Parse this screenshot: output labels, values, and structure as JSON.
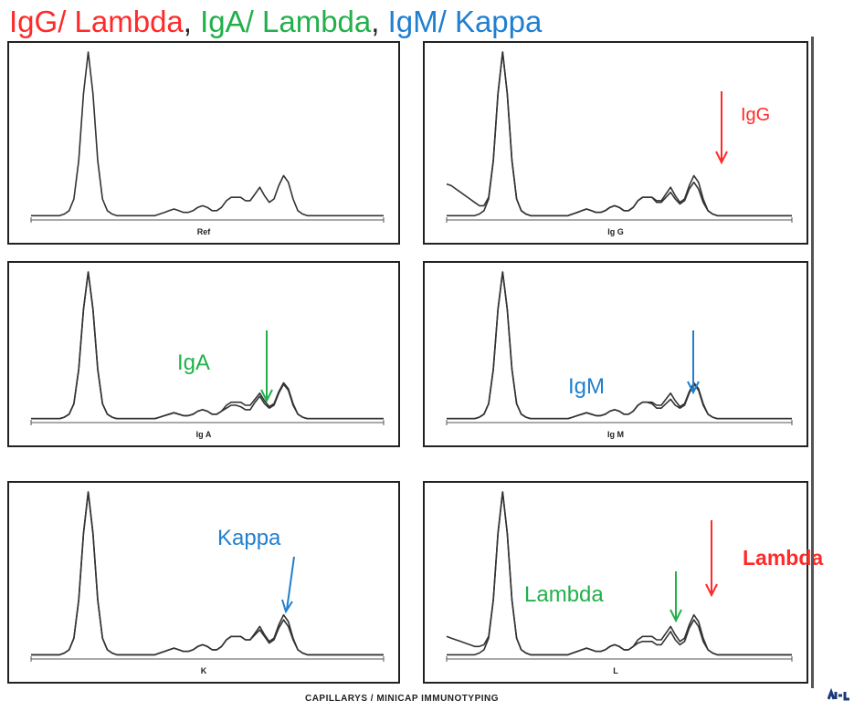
{
  "title": {
    "parts": [
      {
        "text": "IgG/ Lambda",
        "color": "#ff2a2a"
      },
      {
        "text": ", ",
        "color": "#222222"
      },
      {
        "text": "IgA/ Lambda",
        "color": "#22b04b"
      },
      {
        "text": ", ",
        "color": "#222222"
      },
      {
        "text": "IgM/ Kappa",
        "color": "#1f7fd0"
      }
    ]
  },
  "footer": "CAPILLARYS / MINICAP IMMUNOTYPING",
  "colors": {
    "red": "#ff2a2a",
    "green": "#22b04b",
    "blue": "#1f7fd0",
    "line": "#333333"
  },
  "chart_data": [
    {
      "type": "line",
      "panel": "Ref",
      "title": "Ref",
      "series": [
        {
          "values": [
            0.02,
            0.02,
            0.02,
            0.02,
            0.02,
            0.02,
            0.02,
            0.03,
            0.05,
            0.12,
            0.35,
            0.75,
            1.0,
            0.75,
            0.35,
            0.12,
            0.05,
            0.03,
            0.02,
            0.02,
            0.02,
            0.02,
            0.02,
            0.02,
            0.02,
            0.02,
            0.02,
            0.03,
            0.04,
            0.05,
            0.06,
            0.05,
            0.04,
            0.04,
            0.05,
            0.07,
            0.08,
            0.07,
            0.05,
            0.05,
            0.07,
            0.11,
            0.13,
            0.13,
            0.13,
            0.11,
            0.11,
            0.15,
            0.19,
            0.14,
            0.1,
            0.12,
            0.2,
            0.26,
            0.22,
            0.12,
            0.05,
            0.03,
            0.02,
            0.02,
            0.02,
            0.02,
            0.02,
            0.02,
            0.02,
            0.02,
            0.02,
            0.02,
            0.02,
            0.02,
            0.02,
            0.02,
            0.02,
            0.02,
            0.02
          ]
        }
      ]
    },
    {
      "type": "line",
      "panel": "Ig G",
      "title": "Ig G",
      "series": [
        {
          "values": [
            0.02,
            0.02,
            0.02,
            0.02,
            0.02,
            0.02,
            0.02,
            0.03,
            0.05,
            0.12,
            0.35,
            0.75,
            1.0,
            0.75,
            0.35,
            0.12,
            0.05,
            0.03,
            0.02,
            0.02,
            0.02,
            0.02,
            0.02,
            0.02,
            0.02,
            0.02,
            0.02,
            0.03,
            0.04,
            0.05,
            0.06,
            0.05,
            0.04,
            0.04,
            0.05,
            0.07,
            0.08,
            0.07,
            0.05,
            0.05,
            0.07,
            0.11,
            0.13,
            0.13,
            0.13,
            0.11,
            0.11,
            0.15,
            0.19,
            0.14,
            0.1,
            0.12,
            0.2,
            0.26,
            0.22,
            0.12,
            0.05,
            0.03,
            0.02,
            0.02,
            0.02,
            0.02,
            0.02,
            0.02,
            0.02,
            0.02,
            0.02,
            0.02,
            0.02,
            0.02,
            0.02,
            0.02,
            0.02,
            0.02,
            0.02
          ]
        },
        {
          "values": [
            0.21,
            0.2,
            0.18,
            0.16,
            0.14,
            0.12,
            0.1,
            0.08,
            0.08,
            0.13,
            0.35,
            0.75,
            1.0,
            0.75,
            0.35,
            0.12,
            0.05,
            0.03,
            0.02,
            0.02,
            0.02,
            0.02,
            0.02,
            0.02,
            0.02,
            0.02,
            0.02,
            0.03,
            0.04,
            0.05,
            0.06,
            0.05,
            0.04,
            0.04,
            0.05,
            0.07,
            0.08,
            0.07,
            0.05,
            0.05,
            0.07,
            0.11,
            0.13,
            0.13,
            0.13,
            0.1,
            0.1,
            0.13,
            0.16,
            0.12,
            0.09,
            0.11,
            0.18,
            0.22,
            0.18,
            0.1,
            0.05,
            0.03,
            0.02,
            0.02,
            0.02,
            0.02,
            0.02,
            0.02,
            0.02,
            0.02,
            0.02,
            0.02,
            0.02,
            0.02,
            0.02,
            0.02,
            0.02,
            0.02,
            0.02
          ]
        }
      ],
      "annotations": [
        {
          "text": "IgG",
          "color": "red"
        }
      ]
    },
    {
      "type": "line",
      "panel": "Ig A",
      "title": "Ig A",
      "series": [
        {
          "values": [
            0.02,
            0.02,
            0.02,
            0.02,
            0.02,
            0.02,
            0.02,
            0.03,
            0.05,
            0.12,
            0.35,
            0.75,
            1.0,
            0.75,
            0.35,
            0.12,
            0.05,
            0.03,
            0.02,
            0.02,
            0.02,
            0.02,
            0.02,
            0.02,
            0.02,
            0.02,
            0.02,
            0.03,
            0.04,
            0.05,
            0.06,
            0.05,
            0.04,
            0.04,
            0.05,
            0.07,
            0.08,
            0.07,
            0.05,
            0.05,
            0.07,
            0.11,
            0.13,
            0.13,
            0.13,
            0.11,
            0.11,
            0.15,
            0.19,
            0.14,
            0.1,
            0.12,
            0.2,
            0.26,
            0.22,
            0.12,
            0.05,
            0.03,
            0.02,
            0.02,
            0.02,
            0.02,
            0.02,
            0.02,
            0.02,
            0.02,
            0.02,
            0.02,
            0.02,
            0.02,
            0.02,
            0.02,
            0.02,
            0.02,
            0.02
          ]
        },
        {
          "values": [
            0.02,
            0.02,
            0.02,
            0.02,
            0.02,
            0.02,
            0.02,
            0.03,
            0.05,
            0.12,
            0.35,
            0.75,
            1.0,
            0.75,
            0.35,
            0.12,
            0.05,
            0.03,
            0.02,
            0.02,
            0.02,
            0.02,
            0.02,
            0.02,
            0.02,
            0.02,
            0.02,
            0.03,
            0.04,
            0.05,
            0.06,
            0.05,
            0.04,
            0.04,
            0.05,
            0.07,
            0.08,
            0.07,
            0.05,
            0.05,
            0.07,
            0.09,
            0.11,
            0.11,
            0.1,
            0.08,
            0.08,
            0.13,
            0.17,
            0.12,
            0.09,
            0.11,
            0.19,
            0.25,
            0.21,
            0.11,
            0.05,
            0.03,
            0.02,
            0.02,
            0.02,
            0.02,
            0.02,
            0.02,
            0.02,
            0.02,
            0.02,
            0.02,
            0.02,
            0.02,
            0.02,
            0.02,
            0.02,
            0.02,
            0.02
          ]
        }
      ],
      "annotations": [
        {
          "text": "IgA",
          "color": "green"
        }
      ]
    },
    {
      "type": "line",
      "panel": "Ig M",
      "title": "Ig M",
      "series": [
        {
          "values": [
            0.02,
            0.02,
            0.02,
            0.02,
            0.02,
            0.02,
            0.02,
            0.03,
            0.05,
            0.12,
            0.35,
            0.75,
            1.0,
            0.75,
            0.35,
            0.12,
            0.05,
            0.03,
            0.02,
            0.02,
            0.02,
            0.02,
            0.02,
            0.02,
            0.02,
            0.02,
            0.02,
            0.03,
            0.04,
            0.05,
            0.06,
            0.05,
            0.04,
            0.04,
            0.05,
            0.07,
            0.08,
            0.07,
            0.05,
            0.05,
            0.07,
            0.11,
            0.13,
            0.13,
            0.13,
            0.11,
            0.11,
            0.15,
            0.19,
            0.14,
            0.1,
            0.12,
            0.2,
            0.26,
            0.22,
            0.12,
            0.05,
            0.03,
            0.02,
            0.02,
            0.02,
            0.02,
            0.02,
            0.02,
            0.02,
            0.02,
            0.02,
            0.02,
            0.02,
            0.02,
            0.02,
            0.02,
            0.02,
            0.02,
            0.02
          ]
        },
        {
          "values": [
            0.02,
            0.02,
            0.02,
            0.02,
            0.02,
            0.02,
            0.02,
            0.03,
            0.05,
            0.12,
            0.35,
            0.75,
            1.0,
            0.75,
            0.35,
            0.12,
            0.05,
            0.03,
            0.02,
            0.02,
            0.02,
            0.02,
            0.02,
            0.02,
            0.02,
            0.02,
            0.02,
            0.03,
            0.04,
            0.05,
            0.06,
            0.05,
            0.04,
            0.04,
            0.05,
            0.07,
            0.08,
            0.07,
            0.05,
            0.05,
            0.07,
            0.11,
            0.13,
            0.13,
            0.12,
            0.09,
            0.09,
            0.12,
            0.15,
            0.11,
            0.09,
            0.11,
            0.19,
            0.25,
            0.21,
            0.11,
            0.05,
            0.03,
            0.02,
            0.02,
            0.02,
            0.02,
            0.02,
            0.02,
            0.02,
            0.02,
            0.02,
            0.02,
            0.02,
            0.02,
            0.02,
            0.02,
            0.02,
            0.02,
            0.02
          ]
        }
      ],
      "annotations": [
        {
          "text": "IgM",
          "color": "blue"
        }
      ]
    },
    {
      "type": "line",
      "panel": "K",
      "title": "K",
      "series": [
        {
          "values": [
            0.02,
            0.02,
            0.02,
            0.02,
            0.02,
            0.02,
            0.02,
            0.03,
            0.05,
            0.12,
            0.35,
            0.75,
            1.0,
            0.75,
            0.35,
            0.12,
            0.05,
            0.03,
            0.02,
            0.02,
            0.02,
            0.02,
            0.02,
            0.02,
            0.02,
            0.02,
            0.02,
            0.03,
            0.04,
            0.05,
            0.06,
            0.05,
            0.04,
            0.04,
            0.05,
            0.07,
            0.08,
            0.07,
            0.05,
            0.05,
            0.07,
            0.11,
            0.13,
            0.13,
            0.13,
            0.11,
            0.11,
            0.15,
            0.19,
            0.14,
            0.1,
            0.12,
            0.2,
            0.26,
            0.22,
            0.12,
            0.05,
            0.03,
            0.02,
            0.02,
            0.02,
            0.02,
            0.02,
            0.02,
            0.02,
            0.02,
            0.02,
            0.02,
            0.02,
            0.02,
            0.02,
            0.02,
            0.02,
            0.02,
            0.02
          ]
        },
        {
          "values": [
            0.02,
            0.02,
            0.02,
            0.02,
            0.02,
            0.02,
            0.02,
            0.03,
            0.05,
            0.12,
            0.35,
            0.75,
            1.0,
            0.75,
            0.35,
            0.12,
            0.05,
            0.03,
            0.02,
            0.02,
            0.02,
            0.02,
            0.02,
            0.02,
            0.02,
            0.02,
            0.02,
            0.03,
            0.04,
            0.05,
            0.06,
            0.05,
            0.04,
            0.04,
            0.05,
            0.07,
            0.08,
            0.07,
            0.05,
            0.05,
            0.07,
            0.11,
            0.13,
            0.13,
            0.13,
            0.11,
            0.11,
            0.14,
            0.17,
            0.13,
            0.09,
            0.11,
            0.18,
            0.23,
            0.19,
            0.11,
            0.05,
            0.03,
            0.02,
            0.02,
            0.02,
            0.02,
            0.02,
            0.02,
            0.02,
            0.02,
            0.02,
            0.02,
            0.02,
            0.02,
            0.02,
            0.02,
            0.02,
            0.02,
            0.02
          ]
        }
      ],
      "annotations": [
        {
          "text": "Kappa",
          "color": "blue"
        }
      ]
    },
    {
      "type": "line",
      "panel": "L",
      "title": "L",
      "series": [
        {
          "values": [
            0.02,
            0.02,
            0.02,
            0.02,
            0.02,
            0.02,
            0.02,
            0.03,
            0.05,
            0.12,
            0.35,
            0.75,
            1.0,
            0.75,
            0.35,
            0.12,
            0.05,
            0.03,
            0.02,
            0.02,
            0.02,
            0.02,
            0.02,
            0.02,
            0.02,
            0.02,
            0.02,
            0.03,
            0.04,
            0.05,
            0.06,
            0.05,
            0.04,
            0.04,
            0.05,
            0.07,
            0.08,
            0.07,
            0.05,
            0.05,
            0.07,
            0.11,
            0.13,
            0.13,
            0.13,
            0.11,
            0.11,
            0.15,
            0.19,
            0.14,
            0.1,
            0.12,
            0.2,
            0.26,
            0.22,
            0.12,
            0.05,
            0.03,
            0.02,
            0.02,
            0.02,
            0.02,
            0.02,
            0.02,
            0.02,
            0.02,
            0.02,
            0.02,
            0.02,
            0.02,
            0.02,
            0.02,
            0.02,
            0.02,
            0.02
          ]
        },
        {
          "values": [
            0.13,
            0.12,
            0.11,
            0.1,
            0.09,
            0.08,
            0.07,
            0.07,
            0.08,
            0.13,
            0.35,
            0.75,
            1.0,
            0.75,
            0.35,
            0.12,
            0.05,
            0.03,
            0.02,
            0.02,
            0.02,
            0.02,
            0.02,
            0.02,
            0.02,
            0.02,
            0.02,
            0.03,
            0.04,
            0.05,
            0.06,
            0.05,
            0.04,
            0.04,
            0.05,
            0.07,
            0.08,
            0.07,
            0.05,
            0.05,
            0.07,
            0.09,
            0.1,
            0.1,
            0.1,
            0.08,
            0.08,
            0.12,
            0.16,
            0.11,
            0.08,
            0.1,
            0.18,
            0.23,
            0.19,
            0.1,
            0.05,
            0.03,
            0.02,
            0.02,
            0.02,
            0.02,
            0.02,
            0.02,
            0.02,
            0.02,
            0.02,
            0.02,
            0.02,
            0.02,
            0.02,
            0.02,
            0.02,
            0.02,
            0.02
          ]
        }
      ],
      "annotations": [
        {
          "text": "Lambda",
          "color": "green"
        },
        {
          "text": "Lambda",
          "color": "red"
        }
      ]
    }
  ]
}
